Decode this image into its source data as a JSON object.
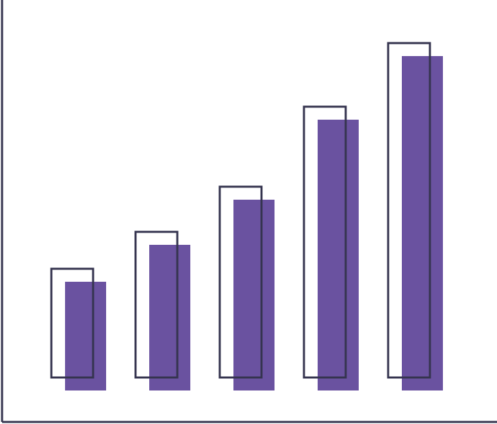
{
  "chart_data": {
    "type": "bar",
    "title": "",
    "xlabel": "",
    "ylabel": "",
    "categories": [
      "",
      "",
      "",
      "",
      ""
    ],
    "series": [
      {
        "style": "filled",
        "color": "#6a52a0",
        "values": [
          159,
          213,
          279,
          396,
          489
        ]
      },
      {
        "style": "outline",
        "color": "#35344f",
        "values": [
          159,
          213,
          279,
          396,
          489
        ]
      }
    ],
    "ylim": [
      0,
      572
    ],
    "grid": false,
    "legend": "none"
  },
  "colors": {
    "axis": "#35344f",
    "fill": "#6a52a0",
    "outline": "#35344f",
    "background": "#ffffff"
  }
}
